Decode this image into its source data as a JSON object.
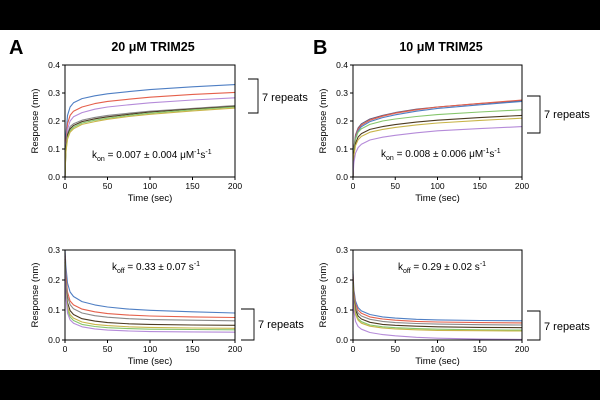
{
  "panels": [
    {
      "letter": "A",
      "title": "20 μM TRIM25"
    },
    {
      "letter": "B",
      "title": "10 μM TRIM25"
    }
  ],
  "colors": {
    "letterbox": "#000000",
    "background": "#ffffff",
    "axis": "#000000"
  },
  "chart_data": [
    {
      "type": "line",
      "xlabel": "Time (sec)",
      "ylabel": "Response (nm)",
      "xlim": [
        0,
        200
      ],
      "ylim": [
        0,
        0.4
      ],
      "xticks": [
        0,
        50,
        100,
        150,
        200
      ],
      "xtick_labels": [
        "0",
        "50",
        "100",
        "150",
        "200"
      ],
      "yticks": [
        0,
        0.1,
        0.2,
        0.3,
        0.4
      ],
      "ytick_labels": [
        "0.0",
        "0.1",
        "0.2",
        "0.3",
        "0.4"
      ],
      "x": [
        0,
        1,
        3,
        6,
        10,
        20,
        35,
        50,
        75,
        100,
        150,
        200
      ],
      "series": [
        {
          "color": "#4f7fc4",
          "values": [
            0,
            0.14,
            0.22,
            0.25,
            0.265,
            0.28,
            0.29,
            0.297,
            0.305,
            0.312,
            0.322,
            0.33
          ]
        },
        {
          "color": "#e5604b",
          "values": [
            0,
            0.12,
            0.19,
            0.22,
            0.235,
            0.25,
            0.262,
            0.27,
            0.278,
            0.285,
            0.295,
            0.302
          ]
        },
        {
          "color": "#b58bd9",
          "values": [
            0,
            0.11,
            0.17,
            0.2,
            0.215,
            0.23,
            0.242,
            0.25,
            0.258,
            0.265,
            0.275,
            0.283
          ]
        },
        {
          "color": "#8a8a8a",
          "values": [
            0,
            0.1,
            0.155,
            0.18,
            0.19,
            0.203,
            0.213,
            0.22,
            0.228,
            0.235,
            0.245,
            0.255
          ]
        },
        {
          "color": "#4d3b22",
          "values": [
            0,
            0.095,
            0.15,
            0.172,
            0.184,
            0.198,
            0.208,
            0.215,
            0.224,
            0.232,
            0.243,
            0.252
          ]
        },
        {
          "color": "#86c66c",
          "values": [
            0,
            0.09,
            0.14,
            0.165,
            0.178,
            0.193,
            0.203,
            0.21,
            0.22,
            0.228,
            0.24,
            0.25
          ]
        },
        {
          "color": "#c9b54a",
          "values": [
            0,
            0.085,
            0.135,
            0.16,
            0.172,
            0.188,
            0.198,
            0.206,
            0.216,
            0.224,
            0.236,
            0.246
          ]
        }
      ],
      "annotation": {
        "symbol": "k",
        "subscript": "on",
        "value": " = 0.007 ± 0.004 μM",
        "sup1": "-1",
        "unit2": "s",
        "sup2": "-1"
      },
      "bracket_label": "7 repeats"
    },
    {
      "type": "line",
      "xlabel": "Time (sec)",
      "ylabel": "Response (nm)",
      "xlim": [
        0,
        200
      ],
      "ylim": [
        0,
        0.4
      ],
      "xticks": [
        0,
        50,
        100,
        150,
        200
      ],
      "xtick_labels": [
        "0",
        "50",
        "100",
        "150",
        "200"
      ],
      "yticks": [
        0,
        0.1,
        0.2,
        0.3,
        0.4
      ],
      "ytick_labels": [
        "0.0",
        "0.1",
        "0.2",
        "0.3",
        "0.4"
      ],
      "x": [
        0,
        1,
        3,
        6,
        10,
        20,
        35,
        50,
        75,
        100,
        150,
        200
      ],
      "series": [
        {
          "color": "#6a5a7a",
          "values": [
            0,
            0.1,
            0.15,
            0.175,
            0.19,
            0.207,
            0.22,
            0.23,
            0.242,
            0.25,
            0.262,
            0.272
          ]
        },
        {
          "color": "#e5604b",
          "values": [
            0,
            0.095,
            0.145,
            0.17,
            0.185,
            0.203,
            0.217,
            0.228,
            0.24,
            0.25,
            0.263,
            0.275
          ]
        },
        {
          "color": "#4f7fc4",
          "values": [
            0,
            0.09,
            0.14,
            0.165,
            0.18,
            0.198,
            0.212,
            0.222,
            0.235,
            0.245,
            0.258,
            0.27
          ]
        },
        {
          "color": "#86c66c",
          "values": [
            0,
            0.09,
            0.135,
            0.16,
            0.172,
            0.188,
            0.2,
            0.207,
            0.216,
            0.223,
            0.232,
            0.24
          ]
        },
        {
          "color": "#4d3b22",
          "values": [
            0,
            0.08,
            0.12,
            0.143,
            0.155,
            0.17,
            0.18,
            0.187,
            0.196,
            0.203,
            0.212,
            0.22
          ]
        },
        {
          "color": "#c9b54a",
          "values": [
            0,
            0.075,
            0.112,
            0.133,
            0.145,
            0.16,
            0.17,
            0.177,
            0.186,
            0.193,
            0.202,
            0.21
          ]
        },
        {
          "color": "#b58bd9",
          "values": [
            0,
            0.05,
            0.085,
            0.105,
            0.117,
            0.132,
            0.142,
            0.149,
            0.158,
            0.165,
            0.173,
            0.18
          ]
        }
      ],
      "annotation": {
        "symbol": "k",
        "subscript": "on",
        "value": " = 0.008 ± 0.006 μM",
        "sup1": "-1",
        "unit2": "s",
        "sup2": "-1"
      },
      "bracket_label": "7 repeats"
    },
    {
      "type": "line",
      "xlabel": "Time (sec)",
      "ylabel": "Response (nm)",
      "xlim": [
        0,
        200
      ],
      "ylim": [
        0,
        0.3
      ],
      "xticks": [
        0,
        50,
        100,
        150,
        200
      ],
      "xtick_labels": [
        "0",
        "50",
        "100",
        "150",
        "200"
      ],
      "yticks": [
        0,
        0.1,
        0.2,
        0.3
      ],
      "ytick_labels": [
        "0.0",
        "0.1",
        "0.2",
        "0.3"
      ],
      "x": [
        0,
        1,
        3,
        6,
        10,
        20,
        35,
        50,
        75,
        100,
        150,
        200
      ],
      "series": [
        {
          "color": "#4f7fc4",
          "values": [
            0.3,
            0.25,
            0.19,
            0.16,
            0.145,
            0.128,
            0.117,
            0.11,
            0.103,
            0.099,
            0.094,
            0.09
          ]
        },
        {
          "color": "#e5604b",
          "values": [
            0.29,
            0.22,
            0.16,
            0.13,
            0.117,
            0.103,
            0.094,
            0.088,
            0.083,
            0.08,
            0.077,
            0.075
          ]
        },
        {
          "color": "#8a8a8a",
          "values": [
            0.28,
            0.2,
            0.145,
            0.118,
            0.104,
            0.09,
            0.081,
            0.076,
            0.071,
            0.068,
            0.066,
            0.064
          ]
        },
        {
          "color": "#4d3b22",
          "values": [
            0.27,
            0.18,
            0.125,
            0.098,
            0.085,
            0.071,
            0.063,
            0.058,
            0.054,
            0.052,
            0.05,
            0.049
          ]
        },
        {
          "color": "#c9b54a",
          "values": [
            0.26,
            0.17,
            0.11,
            0.085,
            0.073,
            0.06,
            0.052,
            0.048,
            0.044,
            0.042,
            0.04,
            0.039
          ]
        },
        {
          "color": "#86c66c",
          "values": [
            0.26,
            0.16,
            0.1,
            0.077,
            0.065,
            0.052,
            0.045,
            0.041,
            0.038,
            0.036,
            0.035,
            0.034
          ]
        },
        {
          "color": "#b58bd9",
          "values": [
            0.25,
            0.15,
            0.09,
            0.067,
            0.056,
            0.044,
            0.037,
            0.033,
            0.03,
            0.028,
            0.027,
            0.026
          ]
        }
      ],
      "annotation": {
        "symbol": "k",
        "subscript": "off",
        "value": " = 0.33 ± 0.07 s",
        "sup1": "-1"
      },
      "bracket_label": "7 repeats"
    },
    {
      "type": "line",
      "xlabel": "Time (sec)",
      "ylabel": "Response (nm)",
      "xlim": [
        0,
        200
      ],
      "ylim": [
        0,
        0.3
      ],
      "xticks": [
        0,
        50,
        100,
        150,
        200
      ],
      "xtick_labels": [
        "0",
        "50",
        "100",
        "150",
        "200"
      ],
      "yticks": [
        0,
        0.1,
        0.2,
        0.3
      ],
      "ytick_labels": [
        "0.0",
        "0.1",
        "0.2",
        "0.3"
      ],
      "x": [
        0,
        1,
        3,
        6,
        10,
        20,
        35,
        50,
        75,
        100,
        150,
        200
      ],
      "series": [
        {
          "color": "#4f7fc4",
          "values": [
            0.23,
            0.17,
            0.13,
            0.108,
            0.097,
            0.085,
            0.077,
            0.073,
            0.069,
            0.067,
            0.065,
            0.064
          ]
        },
        {
          "color": "#e5604b",
          "values": [
            0.22,
            0.16,
            0.12,
            0.1,
            0.089,
            0.077,
            0.07,
            0.066,
            0.062,
            0.06,
            0.058,
            0.057
          ]
        },
        {
          "color": "#8a8a8a",
          "values": [
            0.21,
            0.15,
            0.11,
            0.09,
            0.08,
            0.069,
            0.062,
            0.058,
            0.055,
            0.053,
            0.051,
            0.05
          ]
        },
        {
          "color": "#4d3b22",
          "values": [
            0.2,
            0.14,
            0.1,
            0.08,
            0.07,
            0.059,
            0.052,
            0.049,
            0.046,
            0.044,
            0.042,
            0.041
          ]
        },
        {
          "color": "#86c66c",
          "values": [
            0.19,
            0.13,
            0.09,
            0.071,
            0.061,
            0.05,
            0.044,
            0.041,
            0.038,
            0.036,
            0.034,
            0.033
          ]
        },
        {
          "color": "#c9b54a",
          "values": [
            0.19,
            0.125,
            0.085,
            0.066,
            0.056,
            0.046,
            0.04,
            0.037,
            0.034,
            0.032,
            0.031,
            0.03
          ]
        },
        {
          "color": "#b58bd9",
          "values": [
            0.16,
            0.1,
            0.062,
            0.045,
            0.036,
            0.025,
            0.018,
            0.014,
            0.009,
            0.006,
            0.003,
            0.002
          ]
        }
      ],
      "annotation": {
        "symbol": "k",
        "subscript": "off",
        "value": " = 0.29 ± 0.02 s",
        "sup1": "-1"
      },
      "bracket_label": "7 repeats"
    }
  ]
}
